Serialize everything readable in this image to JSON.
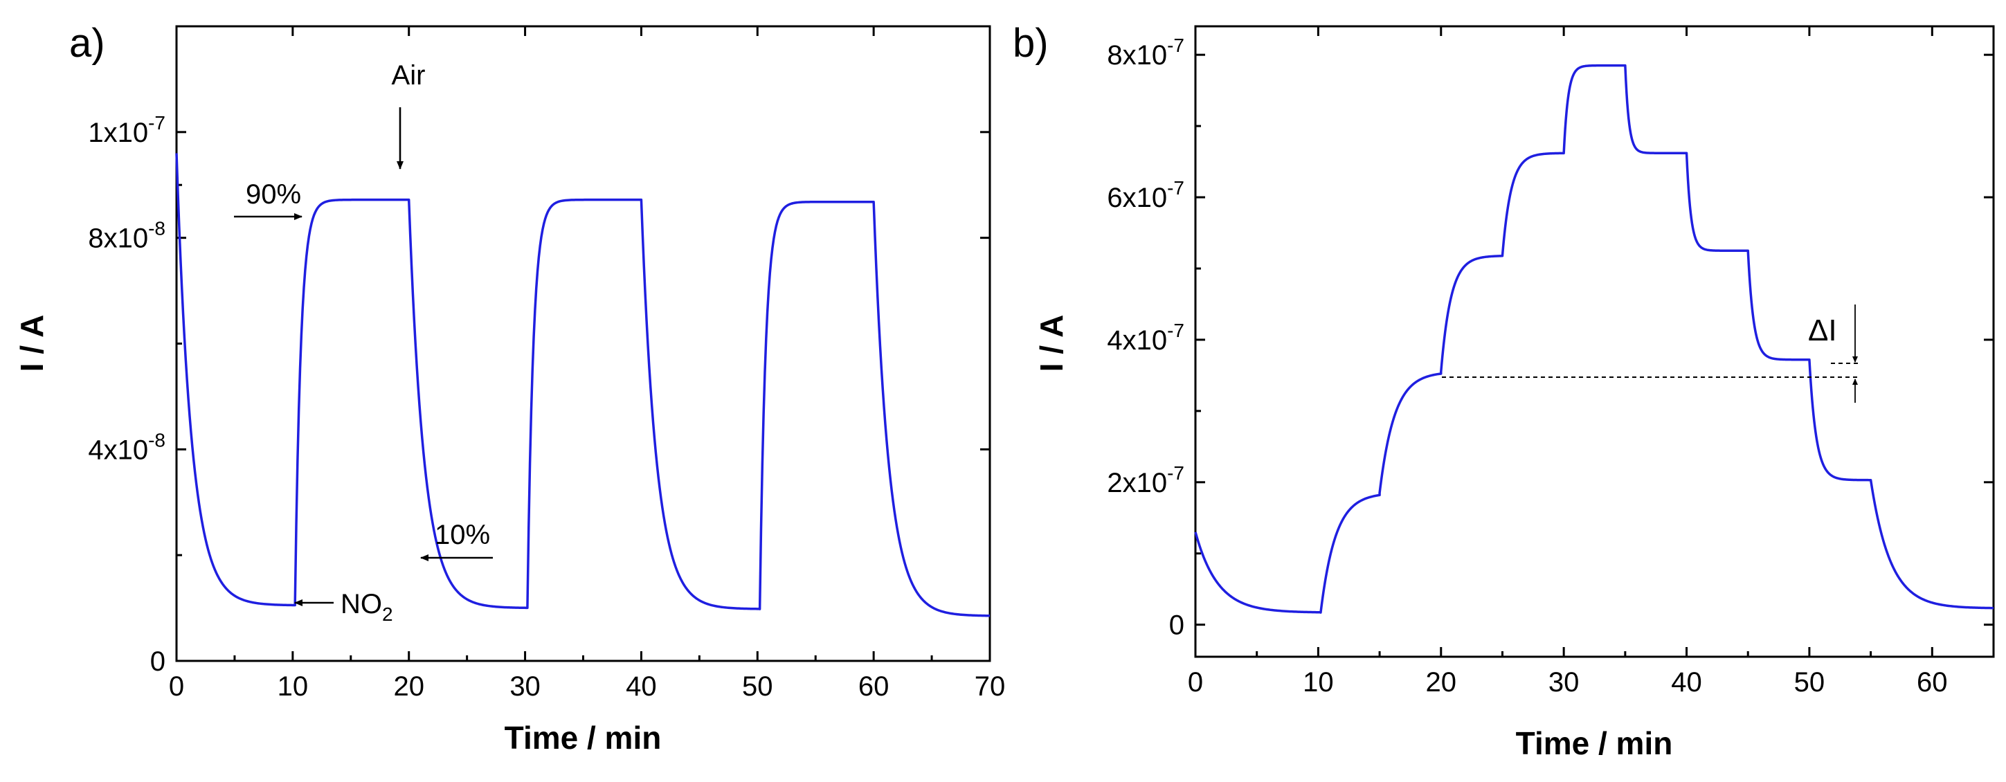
{
  "chart_data": [
    {
      "type": "line",
      "panel_label": "a)",
      "xlabel": "Time / min",
      "ylabel": "I / A",
      "xlim": [
        0,
        70
      ],
      "ylim": [
        0,
        1.2e-07
      ],
      "x_ticks": [
        0,
        10,
        20,
        30,
        40,
        50,
        60,
        70
      ],
      "x_tick_labels": [
        "0",
        "10",
        "20",
        "30",
        "40",
        "50",
        "60",
        "70"
      ],
      "y_ticks": [
        0,
        4e-08,
        8e-08,
        1e-07
      ],
      "y_tick_labels": [
        {
          "base": "0",
          "exp": ""
        },
        {
          "base": "4x10",
          "exp": "-8"
        },
        {
          "base": "8x10",
          "exp": "-8"
        },
        {
          "base": "1x10",
          "exp": "-7"
        }
      ],
      "grid": false,
      "series": [
        {
          "color": "#1f1fe0",
          "segments": [
            {
              "t0": 0,
              "t1": 10.2,
              "from": 9.6e-08,
              "to": 1.05e-08,
              "kind": "decay",
              "tau": 1.3
            },
            {
              "t0": 10.2,
              "t1": 20.0,
              "from": 1.1e-08,
              "to": 8.72e-08,
              "kind": "rise",
              "tau": 0.5
            },
            {
              "t0": 20.0,
              "t1": 30.2,
              "from": 8.72e-08,
              "to": 1e-08,
              "kind": "decay",
              "tau": 1.3
            },
            {
              "t0": 30.2,
              "t1": 40.0,
              "from": 1.02e-08,
              "to": 8.72e-08,
              "kind": "rise",
              "tau": 0.5
            },
            {
              "t0": 40.0,
              "t1": 50.2,
              "from": 8.72e-08,
              "to": 9.8e-09,
              "kind": "decay",
              "tau": 1.3
            },
            {
              "t0": 50.2,
              "t1": 60.0,
              "from": 9.8e-09,
              "to": 8.68e-08,
              "kind": "rise",
              "tau": 0.5
            },
            {
              "t0": 60.0,
              "t1": 70.0,
              "from": 8.68e-08,
              "to": 8.5e-09,
              "kind": "decay",
              "tau": 1.3
            }
          ]
        }
      ],
      "annotations": [
        {
          "text": "Air",
          "x": 20,
          "y": 8.72e-08
        },
        {
          "text": "90%",
          "x": 11.5,
          "y": 7.82e-08
        },
        {
          "text": "10%",
          "x": 22.0,
          "y": 2.15e-08
        },
        {
          "text": "NO",
          "sub": "2",
          "x": 10.3,
          "y": 1.1e-08
        }
      ]
    },
    {
      "type": "line",
      "panel_label": "b)",
      "xlabel": "Time / min",
      "ylabel": "I / A",
      "xlim": [
        0,
        65
      ],
      "ylim": [
        -4.5e-08,
        8.4e-07
      ],
      "x_ticks": [
        0,
        10,
        20,
        30,
        40,
        50,
        60
      ],
      "x_tick_labels": [
        "0",
        "10",
        "20",
        "30",
        "40",
        "50",
        "60"
      ],
      "y_ticks": [
        0,
        2e-07,
        4e-07,
        6e-07,
        8e-07
      ],
      "y_tick_labels": [
        {
          "base": "0",
          "exp": ""
        },
        {
          "base": "2x10",
          "exp": "-7"
        },
        {
          "base": "4x10",
          "exp": "-7"
        },
        {
          "base": "6x10",
          "exp": "-7"
        },
        {
          "base": "8x10",
          "exp": "-7"
        }
      ],
      "grid": false,
      "series": [
        {
          "color": "#1f1fe0",
          "segments": [
            {
              "t0": 0,
              "t1": 10.2,
              "from": 1.3e-07,
              "to": 1.7e-08,
              "kind": "decay",
              "tau": 1.8
            },
            {
              "t0": 10.2,
              "t1": 15.0,
              "from": 1.7e-08,
              "to": 1.85e-07,
              "kind": "rise",
              "tau": 1.2
            },
            {
              "t0": 15.0,
              "t1": 20.0,
              "from": 1.85e-07,
              "to": 3.55e-07,
              "kind": "rise",
              "tau": 1.2
            },
            {
              "t0": 20.0,
              "t1": 25.0,
              "from": 3.55e-07,
              "to": 5.18e-07,
              "kind": "rise",
              "tau": 0.8
            },
            {
              "t0": 25.0,
              "t1": 30.0,
              "from": 5.18e-07,
              "to": 6.62e-07,
              "kind": "rise",
              "tau": 0.7
            },
            {
              "t0": 30.0,
              "t1": 35.0,
              "from": 6.62e-07,
              "to": 7.85e-07,
              "kind": "rise",
              "tau": 0.35
            },
            {
              "t0": 35.0,
              "t1": 40.0,
              "from": 7.85e-07,
              "to": 6.62e-07,
              "kind": "decay",
              "tau": 0.3
            },
            {
              "t0": 40.0,
              "t1": 45.0,
              "from": 6.62e-07,
              "to": 5.25e-07,
              "kind": "decay",
              "tau": 0.35
            },
            {
              "t0": 45.0,
              "t1": 50.0,
              "from": 5.25e-07,
              "to": 3.72e-07,
              "kind": "decay",
              "tau": 0.45
            },
            {
              "t0": 50.0,
              "t1": 55.0,
              "from": 3.72e-07,
              "to": 2.03e-07,
              "kind": "decay",
              "tau": 0.55
            },
            {
              "t0": 55.0,
              "t1": 65.0,
              "from": 2.03e-07,
              "to": 2.3e-08,
              "kind": "decay",
              "tau": 1.6
            }
          ]
        }
      ],
      "annotations": [
        {
          "text": "ΔI",
          "x": 53.5,
          "y": 3.72e-07,
          "y_low": 3.55e-07
        }
      ]
    }
  ]
}
